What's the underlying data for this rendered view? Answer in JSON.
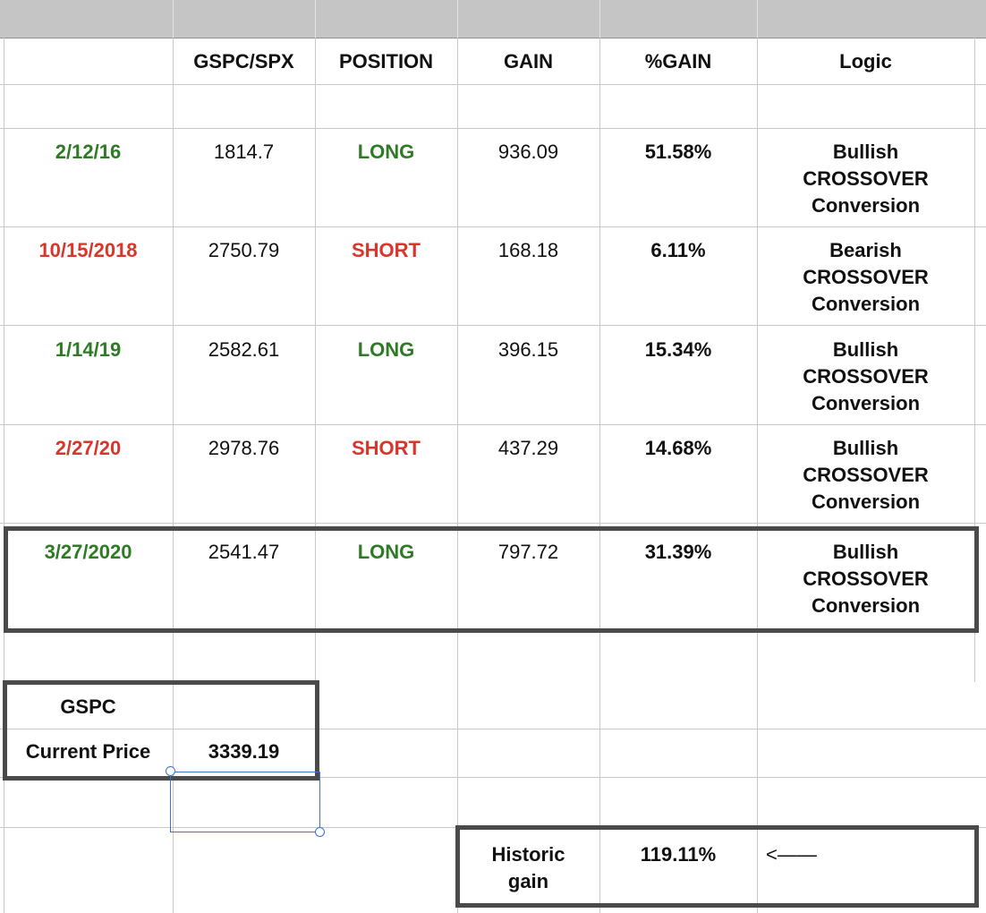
{
  "header": {
    "columns": [
      "",
      "GSPC/SPX",
      "POSITION",
      "GAIN",
      "%GAIN",
      "Logic"
    ]
  },
  "rows": [
    {
      "date": "2/12/16",
      "price": "1814.7",
      "position": "LONG",
      "gain": "936.09",
      "pct": "51.58%",
      "logic": [
        "Bullish",
        "CROSSOVER",
        "Conversion"
      ],
      "date_color": "green",
      "position_color": "green"
    },
    {
      "date": "10/15/2018",
      "price": "2750.79",
      "position": "SHORT",
      "gain": "168.18",
      "pct": "6.11%",
      "logic": [
        "Bearish",
        "CROSSOVER",
        "Conversion"
      ],
      "date_color": "red",
      "position_color": "red"
    },
    {
      "date": "1/14/19",
      "price": "2582.61",
      "position": "LONG",
      "gain": "396.15",
      "pct": "15.34%",
      "logic": [
        "Bullish",
        "CROSSOVER",
        "Conversion"
      ],
      "date_color": "green",
      "position_color": "green"
    },
    {
      "date": "2/27/20",
      "price": "2978.76",
      "position": "SHORT",
      "gain": "437.29",
      "pct": "14.68%",
      "logic": [
        "Bullish",
        "CROSSOVER",
        "Conversion"
      ],
      "date_color": "red",
      "position_color": "red"
    },
    {
      "date": "3/27/2020",
      "price": "2541.47",
      "position": "LONG",
      "gain": "797.72",
      "pct": "31.39%",
      "logic": [
        "Bullish",
        "CROSSOVER",
        "Conversion"
      ],
      "date_color": "green",
      "position_color": "green"
    }
  ],
  "summary": {
    "gspc_label": "GSPC",
    "current_price_label": "Current Price",
    "current_price": "3339.19",
    "historic_label_1": "Historic",
    "historic_label_2": "gain",
    "historic_value": "119.11%",
    "arrow": "<——"
  },
  "colors": {
    "green": "#2e7a25",
    "red": "#d8362a",
    "box_border": "#4a4a4a",
    "selection": "#3f73c7"
  }
}
